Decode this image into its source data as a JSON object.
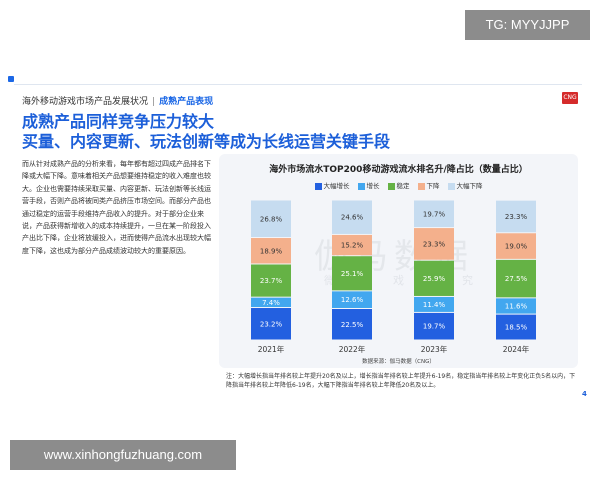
{
  "overlay": {
    "tg_label": "TG: MYYJJPP",
    "site_label": "www.xinhongfuzhuang.com"
  },
  "header": {
    "breadcrumb": "海外移动游戏市场产品发展状况",
    "section": "成熟产品表现",
    "logo": "CNG"
  },
  "title": {
    "line1": "成熟产品同样竞争压力较大",
    "line2": "买量、内容更新、玩法创新等成为长线运营关键手段"
  },
  "body_text": "而从针对成熟产品的分析来看，每年都有超过四成产品排名下降或大幅下降。意味着相关产品想要维持稳定的收入难度也较大。企业也需要持续采取买量、内容更新、玩法创新等长线运营手段，否则产品将被同类产品挤压市场空间。而部分产品也通过稳定的运营手段维持产品收入的提升。对于部分企业来说，产品获得新增收入的成本持续提升，一旦在某一阶段投入产出比下降，企业将放缓投入，进而使得产品流水出现较大幅度下降，这也成为部分产品成绩波动较大的重要原因。",
  "watermark": {
    "main": "伽马数据",
    "sub": "微 游 戏 研 究"
  },
  "chart_data": {
    "type": "bar",
    "stacked": true,
    "title": "海外市场流水TOP200移动游戏流水排名升/降占比（数量占比）",
    "categories": [
      "2021年",
      "2022年",
      "2023年",
      "2024年"
    ],
    "series": [
      {
        "name": "大幅增长",
        "color": "#2360e0",
        "values": [
          23.2,
          22.5,
          19.7,
          18.5
        ]
      },
      {
        "name": "增长",
        "color": "#42a7ef",
        "values": [
          7.4,
          12.6,
          11.4,
          11.6
        ]
      },
      {
        "name": "稳定",
        "color": "#65b245",
        "values": [
          23.7,
          25.1,
          25.9,
          27.5
        ]
      },
      {
        "name": "下降",
        "color": "#f4b08c",
        "values": [
          18.9,
          15.2,
          23.3,
          19.0
        ]
      },
      {
        "name": "大幅下降",
        "color": "#c6dcf0",
        "values": [
          26.8,
          24.6,
          19.7,
          23.3
        ]
      }
    ],
    "value_suffix": "%",
    "ylim": [
      0,
      100
    ],
    "source": "数据来源：伽马数据（CNG）",
    "note": "注：大幅增长指当年排名较上年提升20名及以上，增长指当年排名较上年提升6-19名，稳定指当年排名较上年变化正负5名以内，下降指当年排名较上年降低6-19名，大幅下降指当年排名较上年降低20名及以上。"
  },
  "page_number": "4"
}
